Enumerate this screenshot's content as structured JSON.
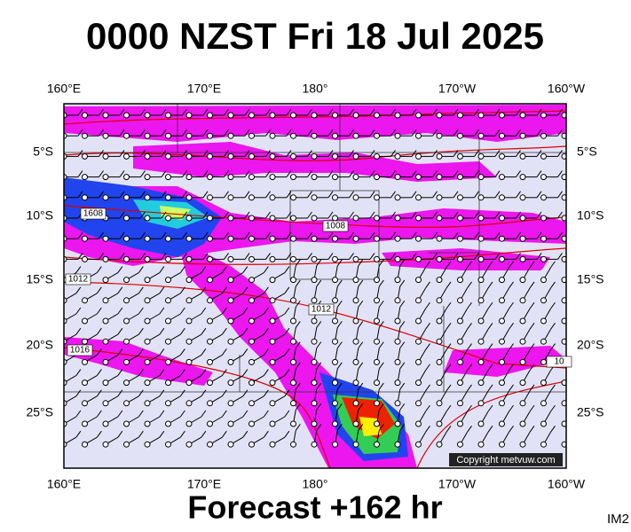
{
  "title": "0000 NZST Fri 18 Jul 2025",
  "top_labels": [
    "160°E",
    "170°E",
    "180°",
    "170°W",
    "160°W"
  ],
  "bottom_labels": [
    "160°E",
    "170°E",
    "180°",
    "170°W",
    "160°W"
  ],
  "left_labels": [
    "5°S",
    "10°S",
    "15°S",
    "20°S",
    "25°S"
  ],
  "right_labels": [
    "5°S",
    "10°S",
    "15°S",
    "20°S",
    "25°S"
  ],
  "isobar_labels": [
    "1608",
    "1008",
    "1012",
    "1012",
    "1016",
    "10"
  ],
  "copyright": "Copyright metvuw.com",
  "footer": "Forecast +162 hr",
  "code": "IM2"
}
